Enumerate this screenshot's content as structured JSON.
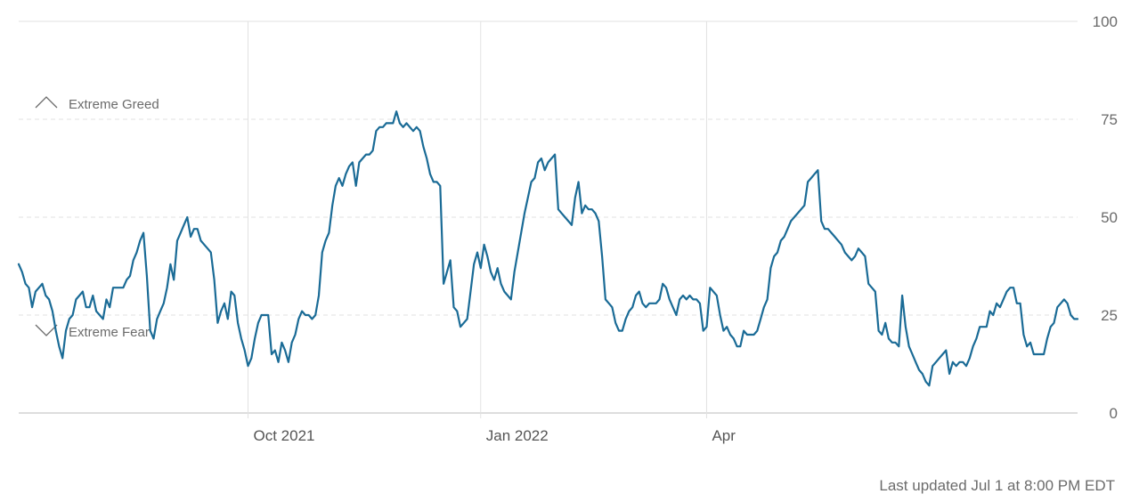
{
  "chart_data": {
    "type": "line",
    "y_ticks": [
      "0",
      "25",
      "50",
      "75",
      "100"
    ],
    "ylim": [
      0,
      100
    ],
    "x_ticks": [
      {
        "label": "Oct 2021",
        "index": 68
      },
      {
        "label": "Jan 2022",
        "index": 137
      },
      {
        "label": "Apr",
        "index": 204
      }
    ],
    "zones": {
      "greed_label": "Extreme Greed",
      "fear_label": "Extreme Fear"
    },
    "grid": true,
    "colors": {
      "line": "#1a6b96",
      "grid": "#e2e2e2",
      "axis": "#bbbbbb"
    },
    "series": [
      {
        "values": [
          38,
          36,
          33,
          32,
          27,
          31,
          32,
          33,
          30,
          29,
          26,
          21,
          17,
          14,
          21,
          24,
          25,
          29,
          30,
          31,
          27,
          27,
          30,
          26,
          25,
          24,
          29,
          27,
          32,
          32,
          32,
          32,
          34,
          35,
          39,
          41,
          44,
          46,
          35,
          21,
          19,
          24,
          26,
          28,
          32,
          38,
          34,
          44,
          46,
          48,
          50,
          45,
          47,
          47,
          44,
          43,
          42,
          41,
          34,
          23,
          26,
          28,
          24,
          31,
          30,
          23,
          19,
          16,
          12,
          14,
          19,
          23,
          25,
          25,
          25,
          15,
          16,
          13,
          18,
          16,
          13,
          18,
          20,
          24,
          26,
          25,
          25,
          24,
          25,
          30,
          41,
          44,
          46,
          53,
          58,
          60,
          58,
          61,
          63,
          64,
          58,
          64,
          65,
          66,
          66,
          67,
          72,
          73,
          73,
          74,
          74,
          74,
          77,
          74,
          73,
          74,
          73,
          72,
          73,
          72,
          68,
          65,
          61,
          59,
          59,
          58,
          33,
          36,
          39,
          27,
          26,
          22,
          23,
          24,
          31,
          38,
          41,
          37,
          43,
          40,
          36,
          34,
          37,
          33,
          31,
          30,
          29,
          36,
          41,
          46,
          51,
          55,
          59,
          60,
          64,
          65,
          62,
          64,
          65,
          66,
          52,
          51,
          50,
          49,
          48,
          55,
          59,
          51,
          53,
          52,
          52,
          51,
          49,
          40,
          29,
          28,
          27,
          23,
          21,
          21,
          24,
          26,
          27,
          30,
          31,
          28,
          27,
          28,
          28,
          28,
          29,
          33,
          32,
          29,
          27,
          25,
          29,
          30,
          29,
          30,
          29,
          29,
          28,
          21,
          22,
          32,
          31,
          30,
          25,
          21,
          22,
          20,
          19,
          17,
          17,
          21,
          20,
          20,
          20,
          21,
          24,
          27,
          29,
          37,
          40,
          41,
          44,
          45,
          47,
          49,
          50,
          51,
          52,
          53,
          59,
          60,
          61,
          62,
          49,
          47,
          47,
          46,
          45,
          44,
          43,
          41,
          40,
          39,
          40,
          42,
          41,
          40,
          33,
          32,
          31,
          21,
          20,
          23,
          19,
          18,
          18,
          17,
          30,
          22,
          17,
          15,
          13,
          11,
          10,
          8,
          7,
          12,
          13,
          14,
          15,
          16,
          10,
          13,
          12,
          13,
          13,
          12,
          14,
          17,
          19,
          22,
          22,
          22,
          26,
          25,
          28,
          27,
          29,
          31,
          32,
          32,
          28,
          28,
          20,
          17,
          18,
          15,
          15,
          15,
          15,
          19,
          22,
          23,
          27,
          28,
          29,
          28,
          25,
          24,
          24
        ]
      }
    ]
  },
  "footer": {
    "updated": "Last updated Jul 1 at 8:00 PM EDT"
  }
}
